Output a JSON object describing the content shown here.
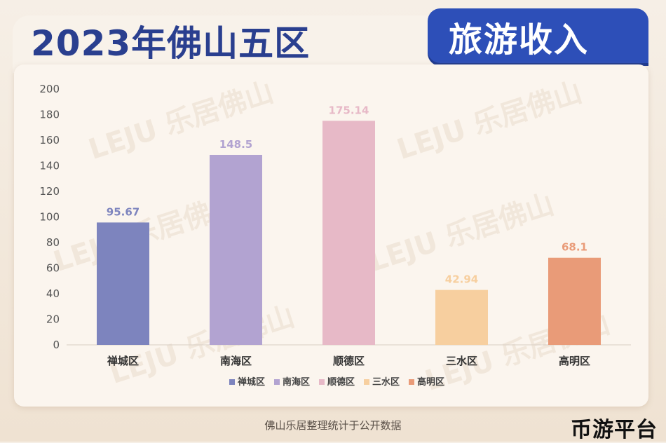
{
  "header": {
    "title": "2023年佛山五区",
    "subtitle": "旅游收入"
  },
  "watermark_text": "LEJU 乐居佛山",
  "footer": {
    "source": "佛山乐居整理统计于公开数据",
    "corner_logo": "币游平台"
  },
  "colors": {
    "title_blue": "#2a3f8f",
    "pill_blue": "#2d4fb8",
    "bars": [
      "#7d84be",
      "#b2a3d1",
      "#e7b9c7",
      "#f7cf9f",
      "#e99b78"
    ]
  },
  "chart_data": {
    "type": "bar",
    "categories": [
      "禅城区",
      "南海区",
      "顺德区",
      "三水区",
      "高明区"
    ],
    "values": [
      95.67,
      148.5,
      175.14,
      42.94,
      68.1
    ],
    "value_labels": [
      "95.67",
      "148.5",
      "175.14",
      "42.94",
      "68.1"
    ],
    "ylim": [
      0,
      200
    ],
    "yticks": [
      0,
      20,
      40,
      60,
      80,
      100,
      120,
      140,
      160,
      180,
      200
    ],
    "grid": false,
    "legend": {
      "position": "bottom",
      "entries": [
        "禅城区",
        "南海区",
        "顺德区",
        "三水区",
        "高明区"
      ]
    },
    "title": "",
    "xlabel": "",
    "ylabel": ""
  }
}
